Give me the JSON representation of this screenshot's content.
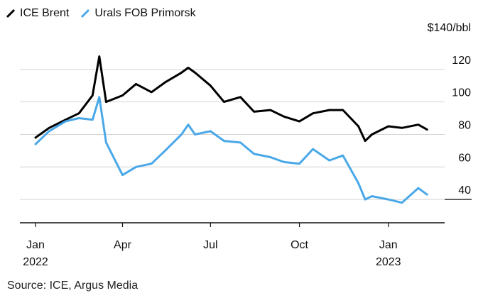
{
  "legend": {
    "items": [
      {
        "label": "ICE Brent",
        "color": "#000000"
      },
      {
        "label": "Urals FOB Primorsk",
        "color": "#4aa8e8"
      }
    ]
  },
  "source": "Source: ICE, Argus Media",
  "chart_data": {
    "type": "line",
    "title": "",
    "xlabel": "",
    "ylabel": "",
    "y_unit_label": "$140/bbl",
    "ylim": [
      30,
      140
    ],
    "yticks": [
      40,
      60,
      80,
      100,
      120,
      140
    ],
    "ytick_labels": [
      "40",
      "60",
      "80",
      "100",
      "120",
      "$140/bbl"
    ],
    "xlim": [
      "2022-01-01",
      "2023-02-15"
    ],
    "xticks": [
      {
        "date": "2022-01-01",
        "label": "Jan",
        "sublabel": "2022"
      },
      {
        "date": "2022-04-01",
        "label": "Apr",
        "sublabel": ""
      },
      {
        "date": "2022-07-01",
        "label": "Jul",
        "sublabel": ""
      },
      {
        "date": "2022-10-01",
        "label": "Oct",
        "sublabel": ""
      },
      {
        "date": "2023-01-01",
        "label": "Jan",
        "sublabel": "2023"
      }
    ],
    "grid": true,
    "legend_position": "top-left",
    "x": [
      "2022-01-01",
      "2022-01-15",
      "2022-02-01",
      "2022-02-15",
      "2022-03-01",
      "2022-03-08",
      "2022-03-15",
      "2022-04-01",
      "2022-04-15",
      "2022-05-01",
      "2022-05-15",
      "2022-06-01",
      "2022-06-08",
      "2022-06-15",
      "2022-07-01",
      "2022-07-15",
      "2022-08-01",
      "2022-08-15",
      "2022-09-01",
      "2022-09-15",
      "2022-10-01",
      "2022-10-15",
      "2022-11-01",
      "2022-11-15",
      "2022-12-01",
      "2022-12-08",
      "2022-12-15",
      "2023-01-01",
      "2023-01-15",
      "2023-02-01",
      "2023-02-10"
    ],
    "series": [
      {
        "name": "ICE Brent",
        "color": "#000000",
        "values": [
          78,
          84,
          89,
          93,
          104,
          128,
          100,
          104,
          111,
          106,
          112,
          118,
          121,
          118,
          110,
          100,
          103,
          94,
          95,
          91,
          88,
          93,
          95,
          95,
          85,
          76,
          80,
          85,
          84,
          86,
          83
        ]
      },
      {
        "name": "Urals FOB Primorsk",
        "color": "#4aa8e8",
        "values": [
          74,
          82,
          88,
          90,
          89,
          103,
          75,
          55,
          60,
          62,
          70,
          80,
          86,
          80,
          82,
          76,
          75,
          68,
          66,
          63,
          62,
          71,
          64,
          67,
          50,
          40,
          42,
          40,
          38,
          47,
          43
        ]
      }
    ]
  }
}
